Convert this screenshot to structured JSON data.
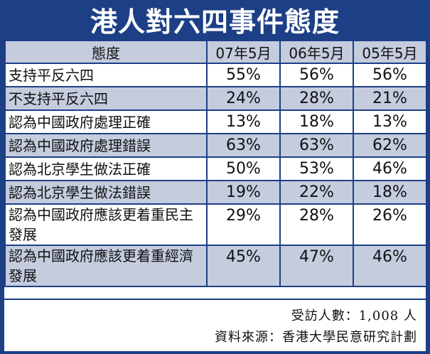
{
  "chart_data": {
    "type": "table",
    "title": "港人對六四事件態度",
    "header": [
      "態度",
      "07年5月",
      "06年5月",
      "05年5月"
    ],
    "rows": [
      {
        "label": "支持平反六四",
        "values": [
          "55%",
          "56%",
          "56%"
        ]
      },
      {
        "label": "不支持平反六四",
        "values": [
          "24%",
          "28%",
          "21%"
        ]
      },
      {
        "label": "認為中國政府處理正確",
        "values": [
          "13%",
          "18%",
          "13%"
        ]
      },
      {
        "label": "認為中國政府處理錯誤",
        "values": [
          "63%",
          "63%",
          "62%"
        ]
      },
      {
        "label": "認為北京學生做法正確",
        "values": [
          "50%",
          "53%",
          "46%"
        ]
      },
      {
        "label": "認為北京學生做法錯誤",
        "values": [
          "19%",
          "22%",
          "18%"
        ]
      },
      {
        "label": "認為中國政府應該更着重民主發展",
        "values": [
          "29%",
          "28%",
          "26%"
        ]
      },
      {
        "label": "認為中國政府應該更着重經濟發展",
        "values": [
          "45%",
          "47%",
          "46%"
        ]
      }
    ],
    "footnotes": [
      "受訪人數：1,008 人",
      "資料來源：香港大學民意研究計劃"
    ]
  },
  "colors": {
    "accent": "#1d3f86",
    "shade": "#c4ccde"
  }
}
